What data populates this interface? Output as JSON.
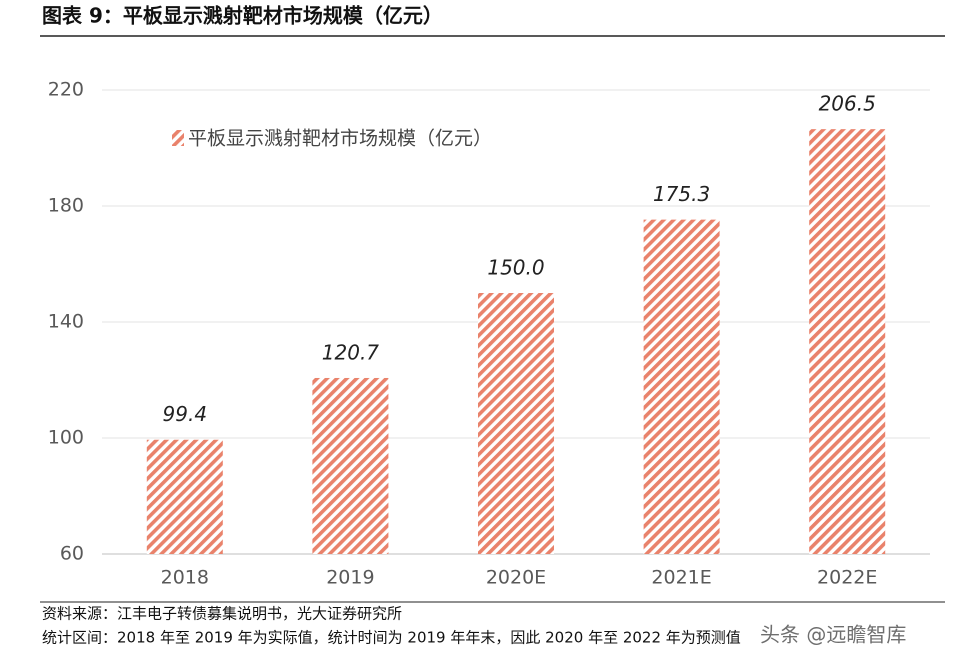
{
  "chart_data": {
    "type": "bar",
    "title": "图表 9：平板显示溅射靶材市场规模（亿元）",
    "categories": [
      "2018",
      "2019",
      "2020E",
      "2021E",
      "2022E"
    ],
    "series": [
      {
        "name": "平板显示溅射靶材市场规模（亿元）",
        "color": "#e9826b",
        "values": [
          99.4,
          120.7,
          150.0,
          175.3,
          206.5
        ],
        "value_labels": [
          "99.4",
          "120.7",
          "150.0",
          "175.3",
          "206.5"
        ]
      }
    ],
    "ylim": [
      60,
      220
    ],
    "yticks": [
      60,
      100,
      140,
      180,
      220
    ],
    "grid": true,
    "source": "资料来源：江丰电子转债募集说明书，光大证券研究所",
    "note": "统计区间：2018 年至 2019 年为实际值，统计时间为 2019 年年末，因此 2020 年至 2022 年为预测值",
    "watermark": "头条 @远瞻智库"
  }
}
